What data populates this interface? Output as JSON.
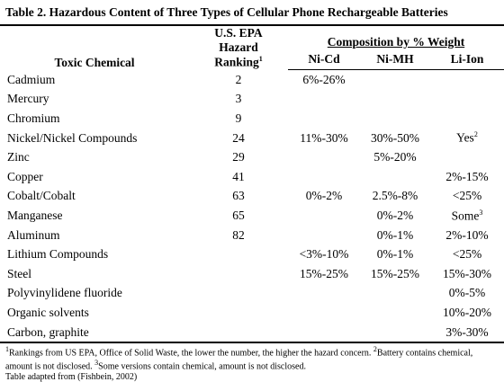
{
  "title": "Table 2. Hazardous Content of Three Types of Cellular Phone Rechargeable Batteries",
  "header": {
    "chemical": "Toxic Chemical",
    "ranking": {
      "text": "U.S. EPA Hazard Ranking",
      "sup": "1"
    },
    "composition": "Composition by % Weight",
    "types": [
      "Ni-Cd",
      "Ni-MH",
      "Li-Ion"
    ]
  },
  "rows": [
    [
      "Cadmium",
      "2",
      "6%-26%",
      null,
      null
    ],
    [
      "Mercury",
      "3",
      null,
      null,
      null
    ],
    [
      "Chromium",
      "9",
      null,
      null,
      null
    ],
    [
      "Nickel/Nickel Compounds",
      "24",
      "11%-30%",
      "30%-50%",
      {
        "text": "Yes",
        "sup": "2"
      }
    ],
    [
      "Zinc",
      "29",
      null,
      "5%-20%",
      null
    ],
    [
      "Copper",
      "41",
      null,
      null,
      "2%-15%"
    ],
    [
      "Cobalt/Cobalt",
      "63",
      "0%-2%",
      "2.5%-8%",
      "<25%"
    ],
    [
      "Manganese",
      "65",
      null,
      "0%-2%",
      {
        "text": "Some",
        "sup": "3"
      }
    ],
    [
      "Aluminum",
      "82",
      null,
      "0%-1%",
      "2%-10%"
    ],
    [
      "Lithium Compounds",
      null,
      "<3%-10%",
      "0%-1%",
      "<25%"
    ],
    [
      "Steel",
      null,
      "15%-25%",
      "15%-25%",
      "15%-30%"
    ],
    [
      "Polyvinylidene fluoride",
      null,
      null,
      null,
      "0%-5%"
    ],
    [
      "Organic solvents",
      null,
      null,
      null,
      "10%-20%"
    ],
    [
      "Carbon, graphite",
      null,
      null,
      null,
      "3%-30%"
    ]
  ],
  "footnotes": [
    {
      "mark": "1",
      "text": "Rankings from US EPA, Office of Solid Waste, the lower the number, the higher the hazard concern. "
    },
    {
      "mark": "2",
      "text": "Battery contains chemical, amount is not disclosed. "
    },
    {
      "mark": "3",
      "text": "Some versions contain chemical, amount is not disclosed."
    }
  ],
  "source": "Table adapted from (Fishbein, 2002)"
}
